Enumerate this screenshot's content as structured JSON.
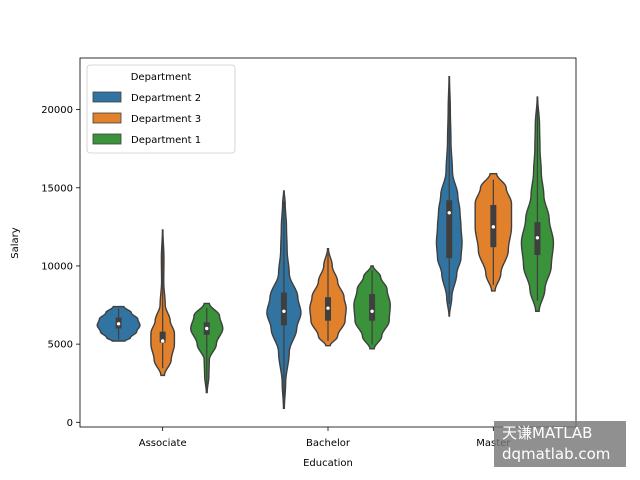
{
  "chart_data": {
    "type": "violin",
    "xlabel": "Education",
    "ylabel": "Salary",
    "categories": [
      "Associate",
      "Bachelor",
      "Master"
    ],
    "ylim": [
      -300,
      23300
    ],
    "yticks": [
      0,
      5000,
      10000,
      15000,
      20000
    ],
    "legend": {
      "title": "Department",
      "placement": "upper left"
    },
    "series": [
      {
        "name": "Department 2",
        "color": "#3274a1",
        "groups": [
          {
            "min": 5200,
            "max": 7400,
            "q1": 6000,
            "median": 6300,
            "q3": 6700,
            "profile": [
              [
                5200,
                0.3
              ],
              [
                5400,
                0.55
              ],
              [
                5800,
                0.85
              ],
              [
                6200,
                1.0
              ],
              [
                6600,
                0.9
              ],
              [
                7000,
                0.6
              ],
              [
                7400,
                0.25
              ]
            ]
          },
          {
            "min": 900,
            "max": 14800,
            "q1": 6200,
            "median": 7100,
            "q3": 8300,
            "profile": [
              [
                900,
                0.02
              ],
              [
                2500,
                0.08
              ],
              [
                4500,
                0.25
              ],
              [
                6000,
                0.6
              ],
              [
                7000,
                0.8
              ],
              [
                8000,
                0.65
              ],
              [
                9500,
                0.25
              ],
              [
                11000,
                0.15
              ],
              [
                12500,
                0.12
              ],
              [
                14000,
                0.06
              ],
              [
                14800,
                0.01
              ]
            ]
          },
          {
            "min": 6800,
            "max": 22100,
            "q1": 10500,
            "median": 13400,
            "q3": 14200,
            "profile": [
              [
                6800,
                0.01
              ],
              [
                8000,
                0.12
              ],
              [
                9500,
                0.35
              ],
              [
                10500,
                0.55
              ],
              [
                11500,
                0.6
              ],
              [
                12500,
                0.55
              ],
              [
                13500,
                0.5
              ],
              [
                14500,
                0.4
              ],
              [
                16000,
                0.15
              ],
              [
                18000,
                0.08
              ],
              [
                20000,
                0.05
              ],
              [
                22100,
                0.01
              ]
            ]
          }
        ]
      },
      {
        "name": "Department 3",
        "color": "#e1812c",
        "groups": [
          {
            "min": 3000,
            "max": 12300,
            "q1": 5100,
            "median": 5200,
            "q3": 5800,
            "profile": [
              [
                3000,
                0.08
              ],
              [
                4000,
                0.4
              ],
              [
                5000,
                0.55
              ],
              [
                5700,
                0.55
              ],
              [
                6500,
                0.35
              ],
              [
                7500,
                0.12
              ],
              [
                9000,
                0.05
              ],
              [
                10500,
                0.06
              ],
              [
                12300,
                0.01
              ]
            ]
          },
          {
            "min": 4900,
            "max": 11100,
            "q1": 6500,
            "median": 7300,
            "q3": 8000,
            "profile": [
              [
                4900,
                0.1
              ],
              [
                5500,
                0.45
              ],
              [
                6500,
                0.8
              ],
              [
                7300,
                0.85
              ],
              [
                8000,
                0.75
              ],
              [
                9000,
                0.45
              ],
              [
                10000,
                0.2
              ],
              [
                11100,
                0.02
              ]
            ]
          },
          {
            "min": 8400,
            "max": 15900,
            "q1": 11200,
            "median": 12500,
            "q3": 13900,
            "profile": [
              [
                8400,
                0.08
              ],
              [
                9500,
                0.35
              ],
              [
                11000,
                0.7
              ],
              [
                12500,
                0.85
              ],
              [
                14000,
                0.85
              ],
              [
                15000,
                0.6
              ],
              [
                15900,
                0.15
              ]
            ]
          }
        ]
      },
      {
        "name": "Department 1",
        "color": "#3a923a",
        "groups": [
          {
            "min": 1900,
            "max": 7600,
            "q1": 5600,
            "median": 6000,
            "q3": 6400,
            "profile": [
              [
                1900,
                0.02
              ],
              [
                3000,
                0.1
              ],
              [
                4000,
                0.12
              ],
              [
                5000,
                0.45
              ],
              [
                6000,
                0.75
              ],
              [
                6800,
                0.6
              ],
              [
                7600,
                0.12
              ]
            ]
          },
          {
            "min": 4700,
            "max": 10000,
            "q1": 6500,
            "median": 7100,
            "q3": 8200,
            "profile": [
              [
                4700,
                0.1
              ],
              [
                5500,
                0.45
              ],
              [
                6500,
                0.8
              ],
              [
                7500,
                0.85
              ],
              [
                8500,
                0.7
              ],
              [
                9300,
                0.4
              ],
              [
                10000,
                0.05
              ]
            ]
          },
          {
            "min": 7100,
            "max": 20800,
            "q1": 10700,
            "median": 11800,
            "q3": 12800,
            "profile": [
              [
                7100,
                0.08
              ],
              [
                8500,
                0.35
              ],
              [
                10000,
                0.65
              ],
              [
                11500,
                0.75
              ],
              [
                13000,
                0.55
              ],
              [
                14500,
                0.3
              ],
              [
                16000,
                0.18
              ],
              [
                17500,
                0.12
              ],
              [
                19000,
                0.1
              ],
              [
                20800,
                0.01
              ]
            ]
          }
        ]
      }
    ]
  },
  "watermark": {
    "line1": "天谦MATLAB",
    "line2": "dqmatlab.com"
  }
}
